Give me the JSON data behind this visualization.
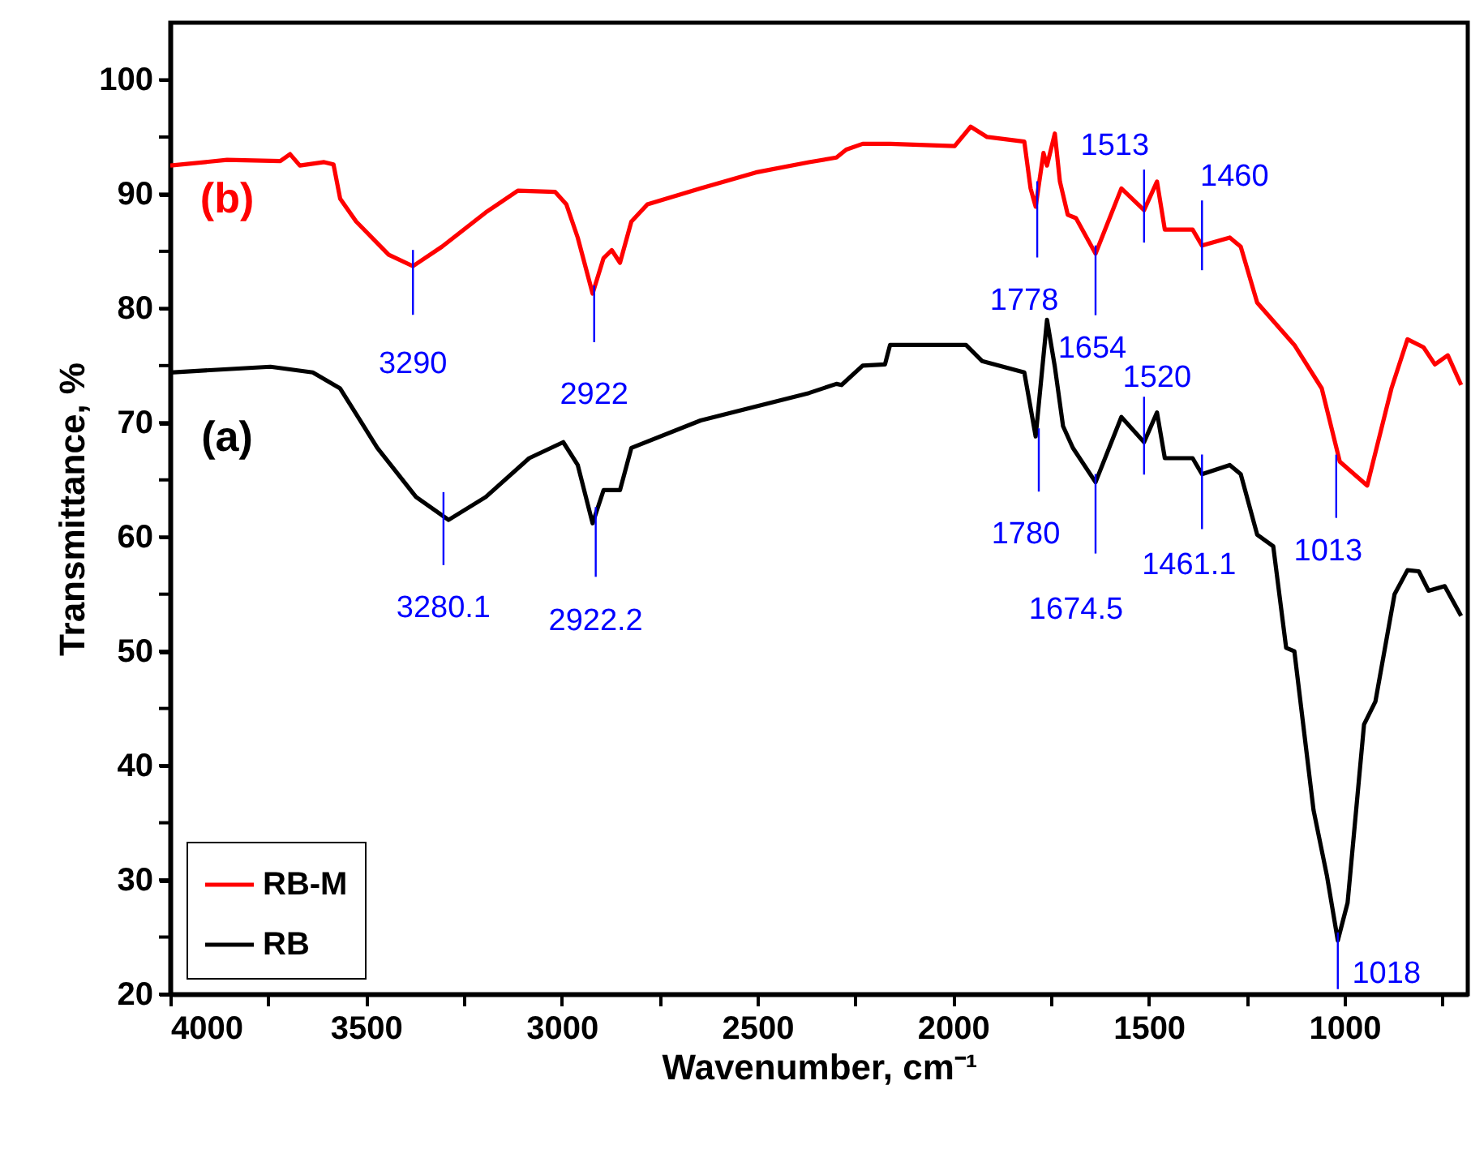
{
  "chart_data": {
    "type": "line",
    "xlabel": "Wavenumber, cm⁻¹",
    "ylabel": "Transmittance, %",
    "xlim": [
      4000,
      685
    ],
    "ylim": [
      20,
      105
    ],
    "xticks": [
      4000,
      {
        "value": 3750,
        "label": null
      },
      3500,
      {
        "value": 3250,
        "label": null
      },
      3000,
      {
        "value": 2750,
        "label": null
      },
      2500,
      {
        "value": 2250,
        "label": null
      },
      2000,
      {
        "value": 1750,
        "label": null
      },
      1500,
      {
        "value": 1250,
        "label": null
      },
      1000,
      {
        "value": 750,
        "label": null
      }
    ],
    "yticks": [
      20,
      {
        "value": 25,
        "label": null
      },
      30,
      {
        "value": 35,
        "label": null
      },
      40,
      {
        "value": 45,
        "label": null
      },
      50,
      {
        "value": 55,
        "label": null
      },
      60,
      {
        "value": 65,
        "label": null
      },
      70,
      {
        "value": 75,
        "label": null
      },
      80,
      {
        "value": 85,
        "label": null
      },
      90,
      {
        "value": 95,
        "label": null
      },
      100
    ],
    "grid": false,
    "legend": "bottom left",
    "series": [
      {
        "name": "RB-M",
        "color": "#ff0000",
        "x": [
          4000,
          3855,
          3719,
          3694,
          3669,
          3607,
          3583,
          3566,
          3525,
          3442,
          3380,
          3306,
          3194,
          3112,
          3017,
          2988,
          2959,
          2921,
          2893,
          2872,
          2851,
          2822,
          2781,
          2645,
          2504,
          2368,
          2298,
          2273,
          2231,
          2161,
          1996,
          1955,
          1913,
          1818,
          1802,
          1789,
          1769,
          1760,
          1740,
          1727,
          1707,
          1686,
          1636,
          1570,
          1512,
          1479,
          1459,
          1388,
          1364,
          1293,
          1265,
          1223,
          1128,
          1058,
          1012,
          942,
          880,
          839,
          798,
          769,
          736,
          702
        ],
        "values": [
          92.5,
          93.0,
          92.9,
          93.5,
          92.5,
          92.8,
          92.6,
          89.6,
          87.6,
          84.7,
          83.7,
          85.4,
          88.4,
          90.3,
          90.2,
          89.1,
          86.2,
          81.3,
          84.4,
          85.1,
          84.0,
          87.6,
          89.1,
          90.5,
          91.9,
          92.8,
          93.2,
          93.9,
          94.4,
          94.4,
          94.2,
          95.9,
          95.0,
          94.6,
          90.5,
          88.9,
          93.6,
          92.5,
          95.3,
          91.1,
          88.2,
          87.9,
          84.8,
          90.5,
          88.6,
          91.1,
          86.9,
          86.9,
          85.5,
          86.2,
          85.4,
          80.5,
          76.8,
          73.0,
          66.6,
          64.5,
          73.0,
          77.3,
          76.6,
          75.1,
          75.9,
          73.3
        ]
      },
      {
        "name": "RB",
        "color": "#000000",
        "x": [
          4000,
          3744,
          3636,
          3566,
          3471,
          3372,
          3289,
          3194,
          3083,
          2996,
          2959,
          2921,
          2893,
          2851,
          2822,
          2645,
          2368,
          2298,
          2285,
          2231,
          2174,
          2161,
          1967,
          1926,
          1818,
          1789,
          1760,
          1740,
          1719,
          1694,
          1636,
          1570,
          1512,
          1479,
          1459,
          1388,
          1364,
          1293,
          1265,
          1223,
          1182,
          1149,
          1128,
          1079,
          1045,
          1017,
          992,
          950,
          921,
          872,
          839,
          810,
          785,
          744,
          702
        ],
        "values": [
          74.4,
          74.9,
          74.4,
          73.0,
          67.8,
          63.5,
          61.5,
          63.5,
          66.9,
          68.3,
          66.3,
          61.2,
          64.1,
          64.1,
          67.8,
          70.2,
          72.6,
          73.4,
          73.3,
          75.0,
          75.1,
          76.8,
          76.8,
          75.4,
          74.4,
          68.8,
          79.0,
          74.9,
          69.7,
          67.8,
          64.8,
          70.5,
          68.3,
          70.9,
          66.9,
          66.9,
          65.5,
          66.3,
          65.5,
          60.2,
          59.2,
          50.3,
          50.0,
          36.1,
          30.4,
          24.7,
          28.0,
          43.6,
          45.6,
          55.0,
          57.1,
          57.0,
          55.3,
          55.7,
          53.1
        ]
      }
    ],
    "annotations": [
      {
        "text": "3290",
        "x": 3380,
        "y": 83.7
      },
      {
        "text": "2922",
        "x": 2917,
        "y": 81.3
      },
      {
        "text": "1778",
        "x": 1785,
        "y": 89.0
      },
      {
        "text": "1654",
        "x": 1636,
        "y": 84.8
      },
      {
        "text": "1513",
        "x": 1512,
        "y": 88.6
      },
      {
        "text": "1460",
        "x": 1364,
        "y": 85.9
      },
      {
        "text": "1013",
        "x": 1021,
        "y": 66.5
      },
      {
        "text": "1780",
        "x": 1781,
        "y": 68.8
      },
      {
        "text": "1674.5",
        "x": 1636,
        "y": 64.8
      },
      {
        "text": "1520",
        "x": 1512,
        "y": 68.3
      },
      {
        "text": "1461.1",
        "x": 1364,
        "y": 65.8
      },
      {
        "text": "1018",
        "x": 1017,
        "y": 24.7
      },
      {
        "text": "3280.1",
        "x": 3302,
        "y": 61.8
      },
      {
        "text": "2922.2",
        "x": 2913,
        "y": 61.2
      },
      "(b)",
      "(a)"
    ]
  }
}
